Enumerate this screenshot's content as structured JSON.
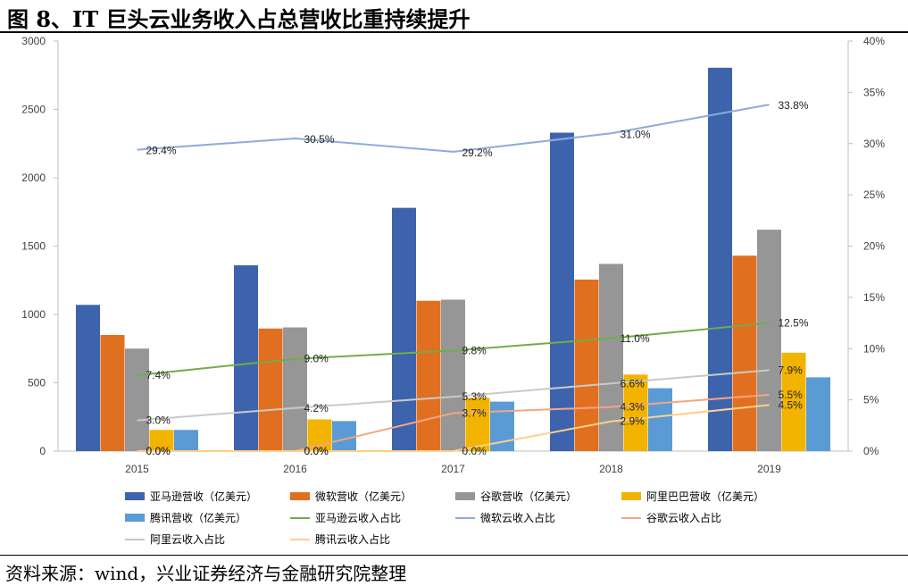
{
  "title": "图 8、IT 巨头云业务收入占总营收比重持续提升",
  "source": "资料来源：wind，兴业证券经济与金融研究院整理",
  "chart_data": {
    "type": "bar",
    "categories": [
      "2015",
      "2016",
      "2017",
      "2018",
      "2019"
    ],
    "ylim": [
      0,
      3000
    ],
    "yticks": [
      0,
      500,
      1000,
      1500,
      2000,
      2500,
      3000
    ],
    "y2lim": [
      0,
      40
    ],
    "y2ticks": [
      "0%",
      "5%",
      "10%",
      "15%",
      "20%",
      "25%",
      "30%",
      "35%",
      "40%"
    ],
    "bar_series": [
      {
        "name": "亚马逊营收（亿美元）",
        "color": "#3e63ad",
        "values": [
          1070,
          1360,
          1780,
          2330,
          2805
        ]
      },
      {
        "name": "微软营收（亿美元）",
        "color": "#e07020",
        "values": [
          850,
          897,
          1100,
          1255,
          1430
        ]
      },
      {
        "name": "谷歌营收（亿美元）",
        "color": "#969696",
        "values": [
          750,
          905,
          1108,
          1370,
          1620
        ]
      },
      {
        "name": "阿里巴巴营收（亿美元）",
        "color": "#f2b400",
        "values": [
          155,
          232,
          390,
          560,
          720
        ]
      },
      {
        "name": "腾讯营收（亿美元）",
        "color": "#5b9bd5",
        "values": [
          155,
          220,
          362,
          460,
          540
        ]
      }
    ],
    "line_series": [
      {
        "name": "亚马逊云收入占比",
        "color": "#70ad47",
        "values": [
          7.4,
          9.0,
          9.8,
          11.0,
          12.5
        ],
        "labels": [
          "7.4%",
          "9.0%",
          "9.8%",
          "11.0%",
          "12.5%"
        ]
      },
      {
        "name": "微软云收入占比",
        "color": "#8faadc",
        "values": [
          29.4,
          30.5,
          29.2,
          31.0,
          33.8
        ],
        "labels": [
          "29.4%",
          "30.5%",
          "29.2%",
          "31.0%",
          "33.8%"
        ]
      },
      {
        "name": "谷歌云收入占比",
        "color": "#f4a582",
        "values": [
          0.0,
          0.0,
          3.7,
          4.3,
          5.5
        ],
        "labels": [
          "0.0%",
          "0.0%",
          "3.7%",
          "4.3%",
          "5.5%"
        ]
      },
      {
        "name": "阿里云收入占比",
        "color": "#c9c9c9",
        "values": [
          3.0,
          4.2,
          5.3,
          6.6,
          7.9
        ],
        "labels": [
          "3.0%",
          "4.2%",
          "5.3%",
          "6.6%",
          "7.9%"
        ]
      },
      {
        "name": "腾讯云收入占比",
        "color": "#ffd08a",
        "values": [
          0.0,
          0.0,
          0.0,
          2.9,
          4.5
        ],
        "labels": [
          "0.0%",
          "0.0%",
          "0.0%",
          "2.9%",
          "4.5%"
        ]
      }
    ],
    "grid": false,
    "legend_position": "bottom"
  }
}
